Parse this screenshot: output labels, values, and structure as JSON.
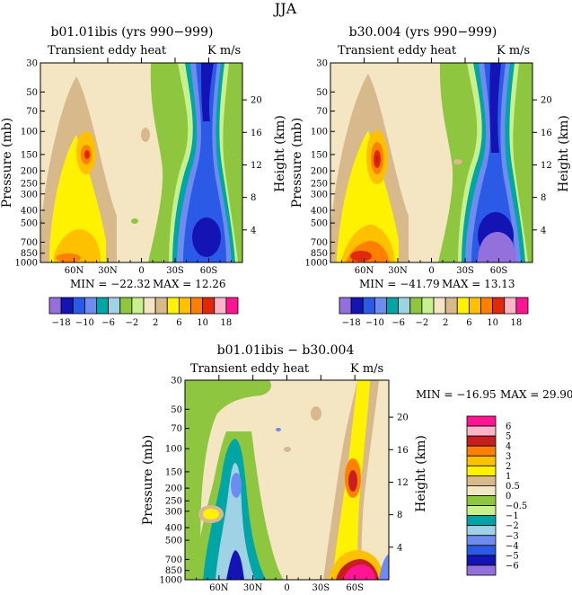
{
  "figure_title": "JJA",
  "chart_data": [
    {
      "type": "heatmap",
      "id": "p1",
      "title": "b01.01ibis (yrs 990−999)",
      "subtitle_left": "Transient eddy heat",
      "subtitle_right": "K m/s",
      "ylabel": "Pressure (mb)",
      "ylabel_right": "Height (km)",
      "pressure_ticks": [
        "30",
        "50",
        "70",
        "100",
        "150",
        "200",
        "250",
        "300",
        "400",
        "500",
        "700",
        "850",
        "1000"
      ],
      "pressure_values": [
        30,
        50,
        70,
        100,
        150,
        200,
        250,
        300,
        400,
        500,
        700,
        850,
        1000
      ],
      "height_ticks": [
        "20",
        "16",
        "12",
        "8",
        "4"
      ],
      "height_values": [
        20,
        16,
        12,
        8,
        4
      ],
      "lat_ticks": [
        "60N",
        "30N",
        "0",
        "30S",
        "60S"
      ],
      "lat_values": [
        60,
        30,
        0,
        -30,
        -60
      ],
      "xlim": [
        90,
        -90
      ],
      "ylim": [
        1000,
        30
      ],
      "min_label": "MIN = −22.32",
      "max_label": "MAX =   12.26",
      "min": -22.32,
      "max": 12.26,
      "colorbar_labels": [
        "−18",
        "−10",
        "−6",
        "−2",
        "2",
        "6",
        "10",
        "18"
      ],
      "levels": [
        -18,
        -14,
        -10,
        -8,
        -6,
        -4,
        -2,
        -1,
        1,
        2,
        4,
        6,
        8,
        10,
        14,
        18
      ]
    },
    {
      "type": "heatmap",
      "id": "p2",
      "title": "b30.004 (yrs 990−999)",
      "subtitle_left": "Transient eddy heat",
      "subtitle_right": "K m/s",
      "ylabel": "Pressure (mb)",
      "ylabel_right": "Height (km)",
      "pressure_ticks": [
        "30",
        "50",
        "70",
        "100",
        "150",
        "200",
        "250",
        "300",
        "400",
        "500",
        "700",
        "850",
        "1000"
      ],
      "pressure_values": [
        30,
        50,
        70,
        100,
        150,
        200,
        250,
        300,
        400,
        500,
        700,
        850,
        1000
      ],
      "height_ticks": [
        "20",
        "16",
        "12",
        "8",
        "4"
      ],
      "height_values": [
        20,
        16,
        12,
        8,
        4
      ],
      "lat_ticks": [
        "60N",
        "30N",
        "0",
        "30S",
        "60S"
      ],
      "lat_values": [
        60,
        30,
        0,
        -30,
        -60
      ],
      "xlim": [
        90,
        -90
      ],
      "ylim": [
        1000,
        30
      ],
      "min_label": "MIN = −41.79",
      "max_label": "MAX =   13.13",
      "min": -41.79,
      "max": 13.13,
      "colorbar_labels": [
        "−18",
        "−10",
        "−6",
        "−2",
        "2",
        "6",
        "10",
        "18"
      ],
      "levels": [
        -18,
        -14,
        -10,
        -8,
        -6,
        -4,
        -2,
        -1,
        1,
        2,
        4,
        6,
        8,
        10,
        14,
        18
      ]
    },
    {
      "type": "heatmap",
      "id": "p3",
      "title": "b01.01ibis − b30.004",
      "subtitle_left": "Transient eddy heat",
      "subtitle_right": "K m/s",
      "ylabel": "Pressure (mb)",
      "ylabel_right": "Height (km)",
      "pressure_ticks": [
        "30",
        "50",
        "70",
        "100",
        "150",
        "200",
        "250",
        "300",
        "400",
        "500",
        "700",
        "850",
        "1000"
      ],
      "pressure_values": [
        30,
        50,
        70,
        100,
        150,
        200,
        250,
        300,
        400,
        500,
        700,
        850,
        1000
      ],
      "height_ticks": [
        "20",
        "16",
        "12",
        "8",
        "4"
      ],
      "height_values": [
        20,
        16,
        12,
        8,
        4
      ],
      "lat_ticks": [
        "60N",
        "30N",
        "0",
        "30S",
        "60S"
      ],
      "lat_values": [
        60,
        30,
        0,
        -30,
        -60
      ],
      "xlim": [
        90,
        -90
      ],
      "ylim": [
        1000,
        30
      ],
      "min_label": "MIN = −16.95",
      "max_label": "MAX =   29.90",
      "min": -16.95,
      "max": 29.9,
      "colorbar_labels": [
        "6",
        "5",
        "4",
        "3",
        "2",
        "1",
        "0.5",
        "0",
        "−0.5",
        "−1",
        "−2",
        "−3",
        "−4",
        "−5",
        "−6"
      ],
      "levels": [
        6,
        5,
        4,
        3,
        2,
        1,
        0.5,
        0,
        -0.5,
        -1,
        -2,
        -3,
        -4,
        -5,
        -6
      ]
    }
  ],
  "colors": {
    "abs": [
      "#9370db",
      "#1414b4",
      "#2a5ae6",
      "#6e8cf0",
      "#00a5a5",
      "#a0d2e6",
      "#8ec63f",
      "#c8f08c",
      "#f5e6c3",
      "#d7b98c",
      "#fff200",
      "#ffc000",
      "#ff8000",
      "#e0280a",
      "#ffb4c8",
      "#ff1493"
    ],
    "diff": [
      "#ff1493",
      "#ffb4c8",
      "#c81e1e",
      "#ff8000",
      "#ffc000",
      "#fff200",
      "#d7b98c",
      "#f5e6c3",
      "#8ec63f",
      "#c8f08c",
      "#00a5a5",
      "#a0d2e6",
      "#6e8cf0",
      "#2a5ae6",
      "#1414b4",
      "#9370db"
    ]
  }
}
